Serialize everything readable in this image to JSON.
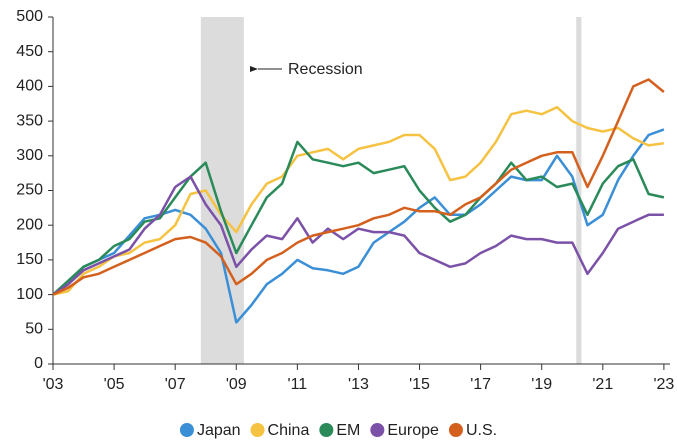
{
  "chart_data": {
    "type": "line",
    "annotation": "Recession",
    "recessions": [
      [
        2007.84,
        2009.25
      ],
      [
        2020.13,
        2020.3
      ]
    ],
    "x": [
      2003,
      2003.5,
      2004,
      2004.5,
      2005,
      2005.5,
      2006,
      2006.5,
      2007,
      2007.5,
      2008,
      2008.5,
      2009,
      2009.5,
      2010,
      2010.5,
      2011,
      2011.5,
      2012,
      2012.5,
      2013,
      2013.5,
      2014,
      2014.5,
      2015,
      2015.5,
      2016,
      2016.5,
      2017,
      2017.5,
      2018,
      2018.5,
      2019,
      2019.5,
      2020,
      2020.5,
      2021,
      2021.5,
      2022,
      2022.5,
      2023
    ],
    "series": [
      {
        "name": "Japan",
        "color": "#3b8fd6",
        "values": [
          100,
          115,
          140,
          150,
          160,
          185,
          210,
          215,
          222,
          215,
          195,
          160,
          60,
          85,
          115,
          130,
          150,
          138,
          135,
          130,
          140,
          175,
          190,
          205,
          225,
          240,
          215,
          215,
          230,
          250,
          270,
          265,
          265,
          300,
          270,
          200,
          215,
          265,
          300,
          330,
          338
        ]
      },
      {
        "name": "China",
        "color": "#f5c242",
        "values": [
          100,
          105,
          130,
          140,
          155,
          160,
          175,
          180,
          200,
          245,
          250,
          215,
          190,
          230,
          260,
          270,
          300,
          305,
          310,
          295,
          310,
          315,
          320,
          330,
          330,
          310,
          265,
          270,
          290,
          320,
          360,
          365,
          360,
          370,
          350,
          340,
          335,
          340,
          325,
          315,
          318
        ]
      },
      {
        "name": "EM",
        "color": "#2a8a5a",
        "values": [
          100,
          120,
          140,
          150,
          170,
          180,
          205,
          210,
          240,
          270,
          290,
          220,
          160,
          200,
          240,
          260,
          320,
          295,
          290,
          285,
          290,
          275,
          280,
          285,
          250,
          225,
          205,
          215,
          240,
          260,
          290,
          265,
          270,
          255,
          260,
          215,
          260,
          285,
          295,
          245,
          240
        ]
      },
      {
        "name": "Europe",
        "color": "#7b52a8",
        "values": [
          100,
          115,
          135,
          145,
          155,
          165,
          195,
          215,
          255,
          270,
          230,
          200,
          140,
          165,
          185,
          180,
          210,
          175,
          195,
          180,
          195,
          190,
          190,
          185,
          160,
          150,
          140,
          145,
          160,
          170,
          185,
          180,
          180,
          175,
          175,
          130,
          160,
          195,
          205,
          215,
          215
        ]
      },
      {
        "name": "U.S.",
        "color": "#d4601e",
        "values": [
          100,
          110,
          125,
          130,
          140,
          150,
          160,
          170,
          180,
          183,
          175,
          155,
          115,
          130,
          150,
          160,
          175,
          185,
          190,
          195,
          200,
          210,
          215,
          225,
          220,
          220,
          215,
          230,
          240,
          260,
          280,
          290,
          300,
          305,
          305,
          255,
          300,
          350,
          400,
          410,
          392
        ]
      }
    ],
    "xlim": [
      2003,
      2023.2
    ],
    "xticks": [
      {
        "value": 2003,
        "label": "'03"
      },
      {
        "value": 2005,
        "label": "'05"
      },
      {
        "value": 2007,
        "label": "'07"
      },
      {
        "value": 2009,
        "label": "'09"
      },
      {
        "value": 2011,
        "label": "'11"
      },
      {
        "value": 2013,
        "label": "'13"
      },
      {
        "value": 2015,
        "label": "'15"
      },
      {
        "value": 2017,
        "label": "'17"
      },
      {
        "value": 2019,
        "label": "'19"
      },
      {
        "value": 2021,
        "label": "'21"
      },
      {
        "value": 2023,
        "label": "'23"
      }
    ],
    "ylim": [
      0,
      500
    ],
    "yticks": [
      0,
      50,
      100,
      150,
      200,
      250,
      300,
      350,
      400,
      450,
      500
    ],
    "grid": false,
    "legend": "bottom"
  }
}
